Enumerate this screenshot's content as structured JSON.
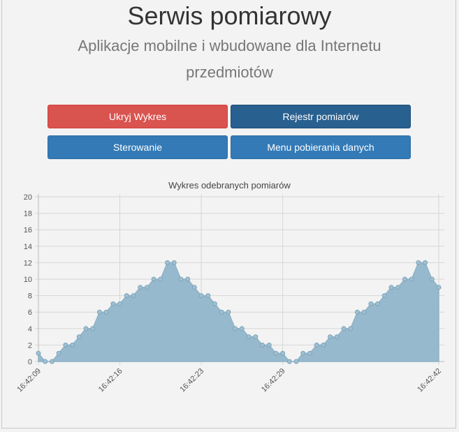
{
  "header": {
    "title": "Serwis pomiarowy",
    "subtitle": "Aplikacje mobilne i wbudowane dla Internetu przedmiotów"
  },
  "buttons": {
    "hide_chart": "Ukryj Wykres",
    "register": "Rejestr pomiarów",
    "control": "Sterowanie",
    "download_menu": "Menu pobierania danych"
  },
  "colors": {
    "area_fill": "#97b9cd",
    "line": "#8fb2c6",
    "point": "#9fc0d3",
    "danger": "#d9534f",
    "dark": "#286090",
    "primary": "#337ab7"
  },
  "chart_data": {
    "type": "area",
    "title": "Wykres odebranych pomiarów",
    "ylim": [
      0,
      20
    ],
    "y_ticks": [
      0,
      2,
      4,
      6,
      8,
      10,
      12,
      14,
      16,
      18,
      20
    ],
    "x_tick_labels": [
      "16:42:09",
      "16:42:16",
      "16:42:23",
      "16:42:29",
      "16:42:42"
    ],
    "x_tick_indices": [
      0,
      12,
      24,
      36,
      59
    ],
    "values": [
      1,
      0,
      0,
      1,
      2,
      2,
      3,
      4,
      4,
      6,
      6,
      7,
      7,
      8,
      8,
      9,
      9,
      10,
      10,
      12,
      12,
      10,
      10,
      9,
      8,
      8,
      7,
      6,
      6,
      4,
      4,
      3,
      3,
      2,
      2,
      1,
      1,
      0,
      0,
      1,
      1,
      2,
      2,
      3,
      3,
      4,
      4,
      6,
      6,
      7,
      7,
      8,
      9,
      9,
      10,
      10,
      12,
      12,
      10,
      9
    ],
    "grid": true
  }
}
